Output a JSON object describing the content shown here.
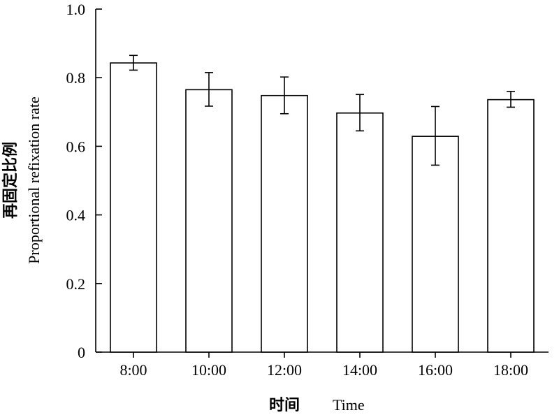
{
  "chart_data": {
    "type": "bar",
    "title": "",
    "categories": [
      "8:00",
      "10:00",
      "12:00",
      "14:00",
      "16:00",
      "18:00"
    ],
    "values": [
      0.843,
      0.765,
      0.748,
      0.697,
      0.629,
      0.736
    ],
    "error_bars": {
      "upper": [
        0.865,
        0.815,
        0.802,
        0.751,
        0.716,
        0.76
      ],
      "lower": [
        0.822,
        0.717,
        0.695,
        0.645,
        0.545,
        0.714
      ]
    },
    "xlabel_cn": "时间",
    "xlabel_en": "Time",
    "ylabel_cn": "再固定比例",
    "ylabel_en": "Proportional refixation rate",
    "ylim": [
      0,
      1.0
    ],
    "yticks": [
      "0",
      "0.2",
      "0.4",
      "0.6",
      "0.8",
      "1.0"
    ],
    "ytick_values": [
      0,
      0.2,
      0.4,
      0.6,
      0.8,
      1.0
    ],
    "grid": false,
    "bar_fill": "#ffffff",
    "bar_stroke": "#000000"
  }
}
